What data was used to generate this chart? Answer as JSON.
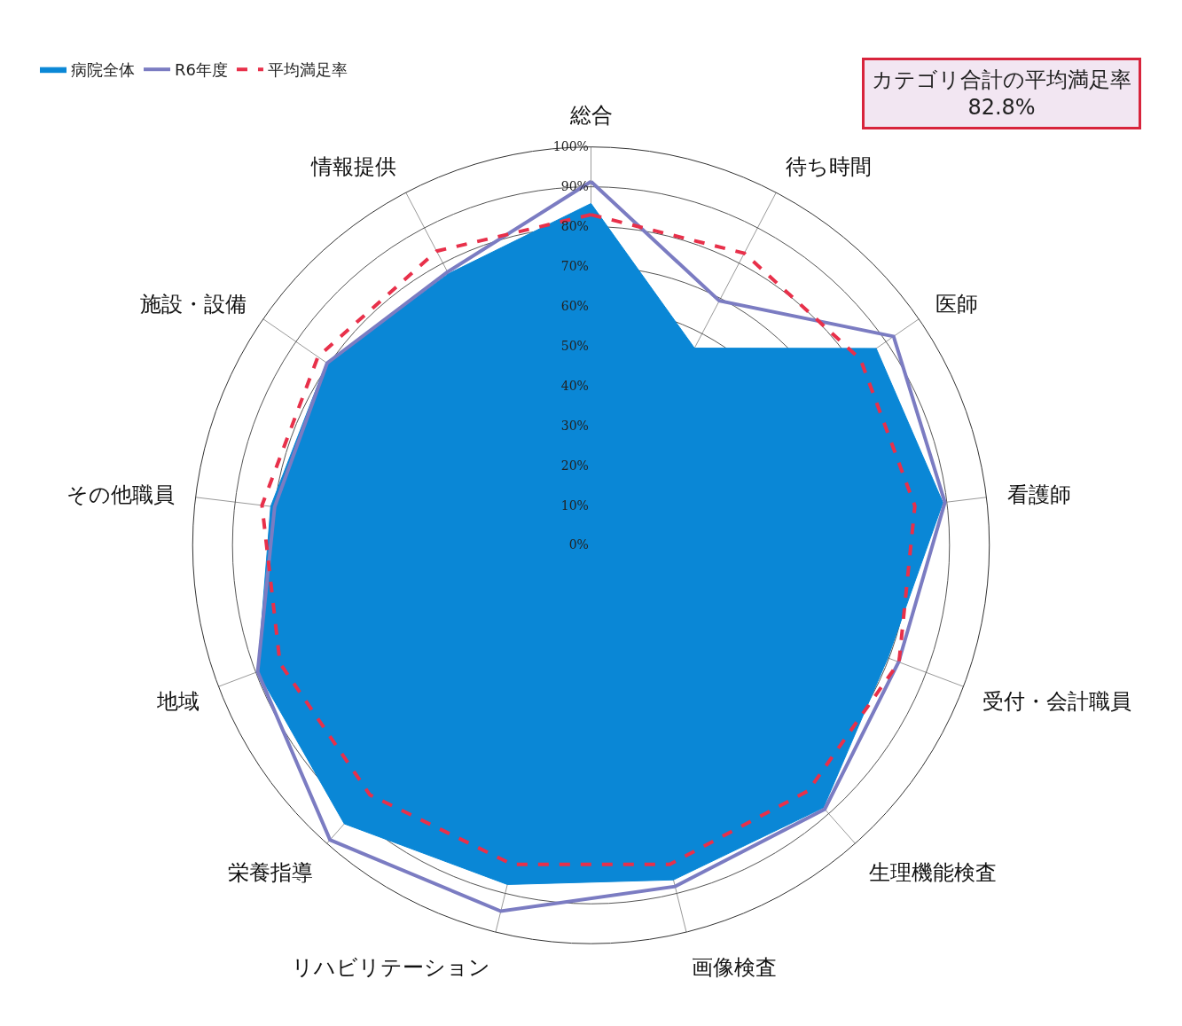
{
  "chart_data": {
    "type": "radar",
    "categories": [
      "総合",
      "待ち時間",
      "医師",
      "看護師",
      "受付・会計職員",
      "生理機能検査",
      "画像検査",
      "リハビリテーション",
      "栄養指導",
      "地域",
      "その他職員",
      "施設・設備",
      "情報提供"
    ],
    "series": [
      {
        "name": "病院全体",
        "type": "area",
        "color": "#0a87d6",
        "values": [
          85.8,
          55.9,
          87,
          89,
          79.7,
          88,
          86.5,
          87.7,
          93.4,
          89.5,
          81,
          80.7,
          77
        ]
      },
      {
        "name": "R6年度",
        "color": "#7b7cc2",
        "values": [
          91.3,
          69.3,
          92.3,
          89.5,
          82.6,
          88.5,
          88.2,
          94.6,
          98.8,
          89.5,
          80,
          80.5,
          77.5
        ]
      },
      {
        "name": "平均満足率",
        "line_style": "dashed",
        "color": "#e8304a",
        "values": [
          83,
          82.8,
          82.2,
          81.9,
          82.7,
          82.3,
          82.5,
          82.5,
          83.7,
          83.5,
          83.2,
          83.3,
          83.4
        ]
      }
    ],
    "ylim": [
      0,
      100
    ],
    "yticks": [
      {
        "value": 0,
        "label": "0%"
      },
      {
        "value": 10,
        "label": "10%"
      },
      {
        "value": 20,
        "label": "20%"
      },
      {
        "value": 30,
        "label": "30%"
      },
      {
        "value": 40,
        "label": "40%"
      },
      {
        "value": 50,
        "label": "50%"
      },
      {
        "value": 60,
        "label": "60%"
      },
      {
        "value": 70,
        "label": "70%"
      },
      {
        "value": 80,
        "label": "80%"
      },
      {
        "value": 90,
        "label": "90%"
      },
      {
        "value": 100,
        "label": "100%"
      }
    ],
    "grid": true,
    "legend": "top left",
    "marker": "none",
    "annotations": [
      "カテゴリ合計の平均満足率\n82.8%"
    ]
  }
}
